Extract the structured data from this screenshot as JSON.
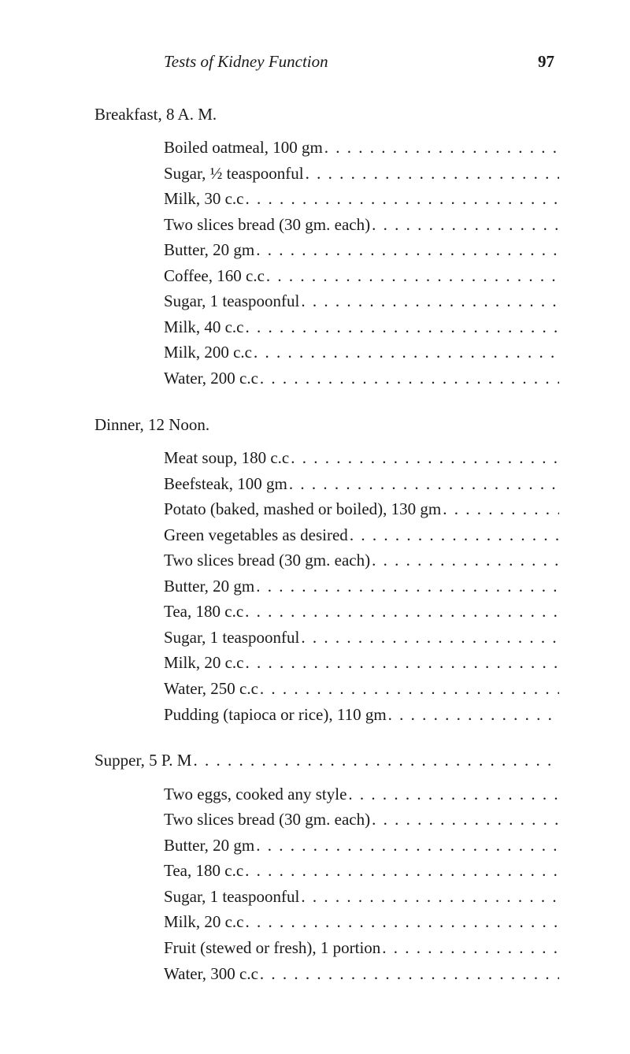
{
  "header": {
    "title_italic": "Tests of Kidney Function",
    "page_number": "97"
  },
  "breakfast": {
    "heading": "Breakfast, 8 A. M.",
    "items": [
      "Boiled oatmeal, 100 gm",
      "Sugar, ½ teaspoonful",
      "Milk, 30 c.c",
      "Two slices bread (30 gm. each)",
      "Butter, 20 gm",
      "Coffee, 160 c.c",
      "Sugar, 1 teaspoonful",
      "Milk, 40 c.c",
      "Milk, 200 c.c",
      "Water, 200 c.c"
    ]
  },
  "dinner": {
    "heading": "Dinner, 12 Noon.",
    "items": [
      "Meat soup, 180 c.c",
      "Beefsteak, 100 gm",
      "Potato (baked, mashed or boiled), 130 gm",
      "Green vegetables as desired",
      "Two slices bread (30 gm. each)",
      "Butter, 20 gm",
      "Tea, 180 c.c",
      "Sugar, 1 teaspoonful",
      "Milk, 20 c.c",
      "Water, 250 c.c",
      "Pudding (tapioca or rice), 110 gm"
    ]
  },
  "supper": {
    "heading": "Supper, 5 P. M",
    "items": [
      "Two eggs, cooked any style",
      "Two slices bread (30 gm. each)",
      "Butter, 20 gm",
      "Tea, 180 c.c",
      "Sugar, 1 teaspoonful",
      "Milk, 20 c.c",
      "Fruit (stewed or fresh), 1 portion",
      "Water, 300 c.c"
    ]
  },
  "dot_fill": ". . . . . . . . . . . . . . . . . . . . . . . . . . . . . . . . . . . . . . . . . . . . . . . . . . . . . . . . . . . . . . . . . . . . . ."
}
